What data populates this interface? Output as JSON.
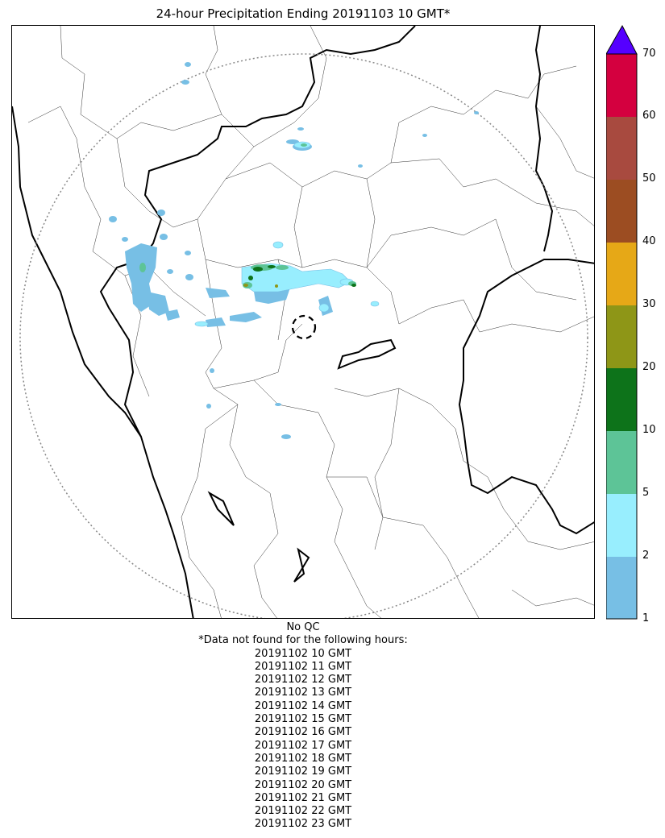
{
  "title": "24-hour Precipitation Ending 20191103 10 GMT*",
  "colorbar": {
    "ticks": [
      "1",
      "2",
      "5",
      "10",
      "20",
      "30",
      "40",
      "50",
      "60",
      "70"
    ],
    "colors": [
      "#77bfe5",
      "#98eefe",
      "#5dc497",
      "#0d731a",
      "#8e9617",
      "#e6a817",
      "#9c4d22",
      "#a84a3f",
      "#d4003f"
    ],
    "extend_color": "#5500ff"
  },
  "notes": {
    "qc": "No QC",
    "missing_header": "*Data not found for the following hours:",
    "missing_hours": [
      "20191102 10 GMT",
      "20191102 11 GMT",
      "20191102 12 GMT",
      "20191102 13 GMT",
      "20191102 14 GMT",
      "20191102 15 GMT",
      "20191102 16 GMT",
      "20191102 17 GMT",
      "20191102 18 GMT",
      "20191102 19 GMT",
      "20191102 20 GMT",
      "20191102 21 GMT",
      "20191102 22 GMT",
      "20191102 23 GMT"
    ]
  }
}
